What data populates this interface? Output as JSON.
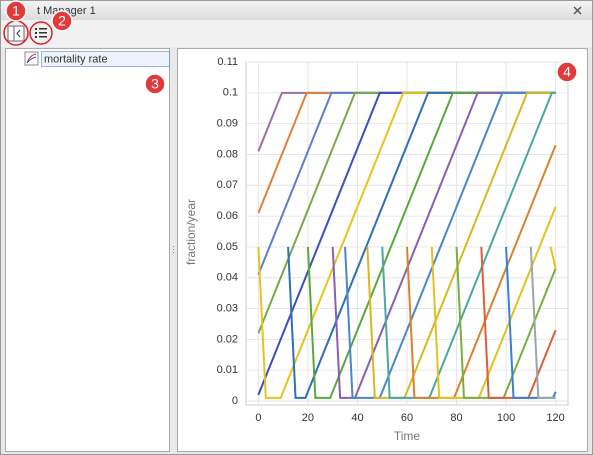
{
  "window": {
    "title": "t Manager 1"
  },
  "tree": {
    "items": [
      "mortality rate"
    ]
  },
  "annotations": [
    "1",
    "2",
    "3",
    "4"
  ],
  "chart_data": {
    "type": "line",
    "y_label": "fraction/year",
    "x_label": "Time",
    "xlim": [
      -5,
      125
    ],
    "ylim": [
      -0.0013,
      0.11
    ],
    "xticks": [
      0,
      20,
      40,
      60,
      80,
      100,
      120
    ],
    "yticks": [
      0,
      0.01,
      0.02,
      0.03,
      0.04,
      0.05,
      0.06,
      0.07,
      0.08,
      0.09,
      0.1,
      0.11
    ],
    "grid": true,
    "series": [
      {
        "color": "#9b6fa8",
        "x": [
          0,
          9.5,
          120
        ],
        "values": [
          0.081,
          0.1,
          0.1
        ]
      },
      {
        "color": "#e0803a",
        "x": [
          0,
          19.5,
          120
        ],
        "values": [
          0.061,
          0.1,
          0.1
        ]
      },
      {
        "color": "#5b7fc9",
        "x": [
          0,
          29.5,
          120
        ],
        "values": [
          0.041,
          0.1,
          0.1
        ]
      },
      {
        "color": "#79a84a",
        "x": [
          0,
          39,
          120
        ],
        "values": [
          0.022,
          0.1,
          0.1
        ]
      },
      {
        "color": "#3b4fbf",
        "x": [
          0,
          49,
          120
        ],
        "values": [
          0.002,
          0.1,
          0.1
        ]
      },
      {
        "color": "#e8c31e",
        "x": [
          0,
          3,
          9,
          58.5,
          120
        ],
        "values": [
          0.05,
          0.001,
          0.001,
          0.1,
          0.1
        ]
      },
      {
        "color": "#2e6fb8",
        "x": [
          12,
          15,
          19,
          68.5,
          120
        ],
        "values": [
          0.05,
          0.001,
          0.001,
          0.1,
          0.1
        ]
      },
      {
        "color": "#5aa83a",
        "x": [
          20,
          23,
          29,
          78.5,
          120
        ],
        "values": [
          0.05,
          0.001,
          0.001,
          0.1,
          0.1
        ]
      },
      {
        "color": "#8a5fb0",
        "x": [
          30,
          33,
          39,
          88.5,
          120
        ],
        "values": [
          0.05,
          0.001,
          0.001,
          0.1,
          0.1
        ]
      },
      {
        "color": "#4a86c8",
        "x": [
          35,
          38,
          49,
          98.5,
          120
        ],
        "values": [
          0.05,
          0.001,
          0.001,
          0.1,
          0.1
        ]
      },
      {
        "color": "#d8b820",
        "x": [
          44,
          47,
          59,
          108.5,
          120
        ],
        "values": [
          0.05,
          0.001,
          0.001,
          0.1,
          0.1
        ]
      },
      {
        "color": "#4aa8a0",
        "x": [
          50,
          53,
          69,
          118.5,
          120
        ],
        "values": [
          0.05,
          0.001,
          0.001,
          0.1,
          0.1
        ]
      },
      {
        "color": "#d9822b",
        "x": [
          60,
          63,
          79,
          120
        ],
        "values": [
          0.05,
          0.001,
          0.001,
          0.083
        ]
      },
      {
        "color": "#e4c020",
        "x": [
          70,
          73,
          89,
          120
        ],
        "values": [
          0.05,
          0.001,
          0.001,
          0.063
        ]
      },
      {
        "color": "#78b040",
        "x": [
          80,
          83,
          99,
          120
        ],
        "values": [
          0.05,
          0.001,
          0.001,
          0.043
        ]
      },
      {
        "color": "#d9603a",
        "x": [
          90,
          93,
          109,
          120
        ],
        "values": [
          0.05,
          0.001,
          0.001,
          0.023
        ]
      },
      {
        "color": "#3a7fd0",
        "x": [
          100,
          103,
          119,
          120
        ],
        "values": [
          0.05,
          0.001,
          0.001,
          0.003
        ]
      },
      {
        "color": "#9aa7a8",
        "x": [
          110,
          113,
          120
        ],
        "values": [
          0.05,
          0.001,
          0.001
        ]
      },
      {
        "color": "#e8c31e",
        "x": [
          118,
          120
        ],
        "values": [
          0.05,
          0.043
        ]
      }
    ]
  }
}
